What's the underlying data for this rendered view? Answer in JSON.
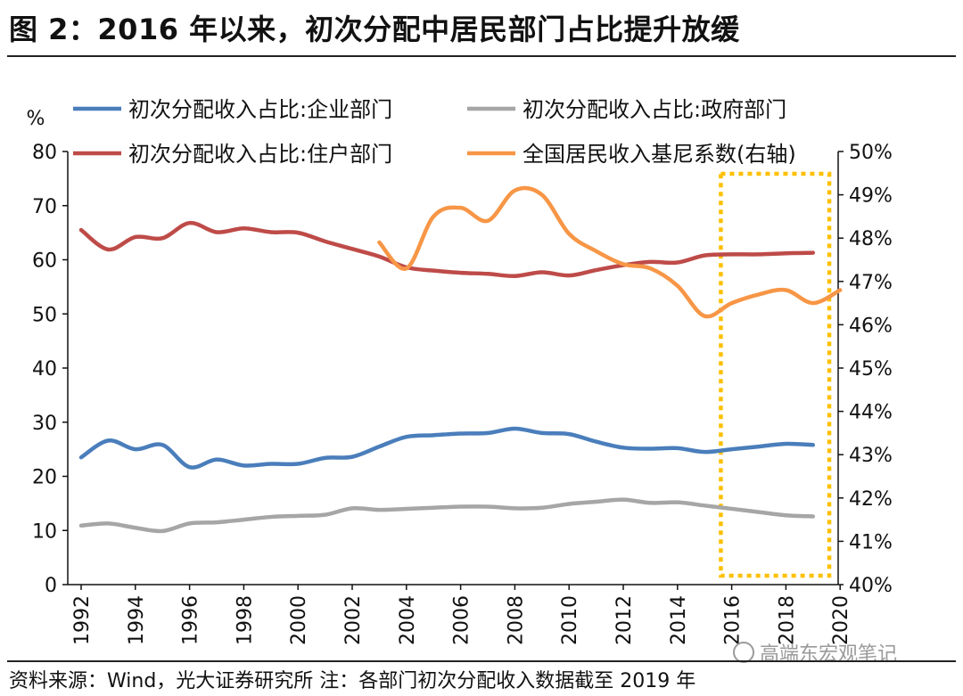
{
  "figure": {
    "title": "图 2：2016 年以来，初次分配中居民部门占比提升放缓",
    "source": "资料来源：Wind，光大证券研究所 注：各部门初次分配收入数据截至 2019 年",
    "watermark": "高端东宏观笔记"
  },
  "chart_data": {
    "type": "line",
    "y_left_unit": "%",
    "ylim_left": [
      0,
      80
    ],
    "ylim_right": [
      40,
      50
    ],
    "y_left_ticks": [
      "0",
      "10",
      "20",
      "30",
      "40",
      "50",
      "60",
      "70",
      "80"
    ],
    "y_right_ticks": [
      "40%",
      "41%",
      "42%",
      "43%",
      "44%",
      "45%",
      "46%",
      "47%",
      "48%",
      "49%",
      "50%"
    ],
    "x_range": [
      1992,
      2020
    ],
    "x_ticks": [
      "1992",
      "1994",
      "1996",
      "1998",
      "2000",
      "2002",
      "2004",
      "2006",
      "2008",
      "2010",
      "2012",
      "2014",
      "2016",
      "2018",
      "2020"
    ],
    "legend_position": "top",
    "series": [
      {
        "name": "初次分配收入占比:企业部门",
        "axis": "left",
        "color": "#4a7ebb",
        "x": [
          1992,
          1993,
          1994,
          1995,
          1996,
          1997,
          1998,
          1999,
          2000,
          2001,
          2002,
          2003,
          2004,
          2005,
          2006,
          2007,
          2008,
          2009,
          2010,
          2011,
          2012,
          2013,
          2014,
          2015,
          2016,
          2017,
          2018,
          2019
        ],
        "y": [
          23.5,
          26.6,
          25.0,
          25.8,
          21.7,
          23.1,
          22.0,
          22.3,
          22.3,
          23.4,
          23.6,
          25.5,
          27.3,
          27.6,
          27.9,
          28.0,
          28.8,
          28.0,
          27.8,
          26.4,
          25.3,
          25.1,
          25.2,
          24.5,
          25.0,
          25.5,
          26.0,
          25.8
        ]
      },
      {
        "name": "初次分配收入占比:政府部门",
        "axis": "left",
        "color": "#a6a6a6",
        "x": [
          1992,
          1993,
          1994,
          1995,
          1996,
          1997,
          1998,
          1999,
          2000,
          2001,
          2002,
          2003,
          2004,
          2005,
          2006,
          2007,
          2008,
          2009,
          2010,
          2011,
          2012,
          2013,
          2014,
          2015,
          2016,
          2017,
          2018,
          2019
        ],
        "y": [
          10.9,
          11.3,
          10.5,
          9.9,
          11.3,
          11.5,
          12.0,
          12.5,
          12.7,
          12.9,
          14.1,
          13.8,
          14.0,
          14.2,
          14.4,
          14.4,
          14.1,
          14.2,
          14.9,
          15.3,
          15.7,
          15.1,
          15.2,
          14.6,
          14.0,
          13.4,
          12.8,
          12.6
        ]
      },
      {
        "name": "初次分配收入占比:住户部门",
        "axis": "left",
        "color": "#be4b48",
        "x": [
          1992,
          1993,
          1994,
          1995,
          1996,
          1997,
          1998,
          1999,
          2000,
          2001,
          2002,
          2003,
          2004,
          2005,
          2006,
          2007,
          2008,
          2009,
          2010,
          2011,
          2012,
          2013,
          2014,
          2015,
          2016,
          2017,
          2018,
          2019
        ],
        "y": [
          65.5,
          61.9,
          64.2,
          64.0,
          66.8,
          65.1,
          65.8,
          65.1,
          65.0,
          63.4,
          62.0,
          60.6,
          58.6,
          58.0,
          57.6,
          57.4,
          57.0,
          57.7,
          57.1,
          58.1,
          59.0,
          59.6,
          59.5,
          60.8,
          61.0,
          61.0,
          61.2,
          61.3
        ]
      },
      {
        "name": "全国居民收入基尼系数(右轴)",
        "axis": "right",
        "color": "#f79646",
        "x": [
          2003,
          2004,
          2005,
          2006,
          2007,
          2008,
          2009,
          2010,
          2011,
          2012,
          2013,
          2014,
          2015,
          2016,
          2017,
          2018,
          2019,
          2020
        ],
        "y": [
          47.9,
          47.3,
          48.5,
          48.7,
          48.4,
          49.1,
          49.0,
          48.1,
          47.7,
          47.4,
          47.3,
          46.9,
          46.2,
          46.5,
          46.7,
          46.8,
          46.5,
          46.8
        ]
      }
    ],
    "highlight_box": {
      "x_start": 2015.6,
      "x_end": 2019.6,
      "color": "#ffc000",
      "style": "dotted"
    }
  }
}
